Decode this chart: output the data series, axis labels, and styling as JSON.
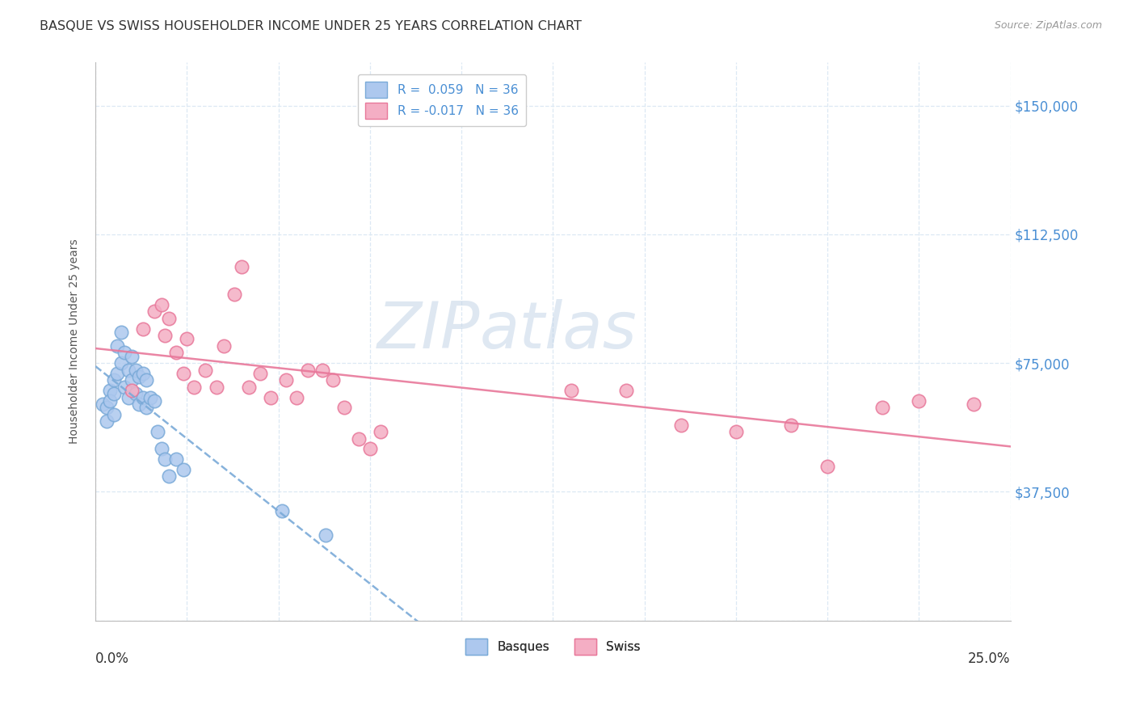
{
  "title": "BASQUE VS SWISS HOUSEHOLDER INCOME UNDER 25 YEARS CORRELATION CHART",
  "source": "Source: ZipAtlas.com",
  "ylabel": "Householder Income Under 25 years",
  "xlim": [
    0.0,
    0.25
  ],
  "ylim": [
    0,
    162500
  ],
  "yticks": [
    0,
    37500,
    75000,
    112500,
    150000
  ],
  "ytick_labels": [
    "",
    "$37,500",
    "$75,000",
    "$112,500",
    "$150,000"
  ],
  "legend_label1": "R =  0.059   N = 36",
  "legend_label2": "R = -0.017   N = 36",
  "basque_color": "#adc8ee",
  "swiss_color": "#f4aec4",
  "basque_edge_color": "#7aaad8",
  "swiss_edge_color": "#e8789a",
  "basque_trend_color": "#7aaad8",
  "swiss_trend_color": "#e8789a",
  "grid_color": "#dce8f4",
  "tick_color_right": "#4a8fd4",
  "watermark_zip": "ZIP",
  "watermark_atlas": "atlas",
  "background_color": "#ffffff",
  "basque_x": [
    0.002,
    0.003,
    0.003,
    0.004,
    0.004,
    0.005,
    0.005,
    0.005,
    0.006,
    0.006,
    0.007,
    0.007,
    0.008,
    0.008,
    0.009,
    0.009,
    0.01,
    0.01,
    0.011,
    0.011,
    0.012,
    0.012,
    0.013,
    0.013,
    0.014,
    0.014,
    0.015,
    0.016,
    0.017,
    0.018,
    0.019,
    0.02,
    0.022,
    0.024,
    0.051,
    0.063
  ],
  "basque_y": [
    63000,
    62000,
    58000,
    67000,
    64000,
    70000,
    66000,
    60000,
    80000,
    72000,
    84000,
    75000,
    78000,
    68000,
    73000,
    65000,
    77000,
    70000,
    73000,
    66000,
    71000,
    63000,
    72000,
    65000,
    70000,
    62000,
    65000,
    64000,
    55000,
    50000,
    47000,
    42000,
    47000,
    44000,
    32000,
    25000
  ],
  "swiss_x": [
    0.01,
    0.013,
    0.016,
    0.018,
    0.019,
    0.02,
    0.022,
    0.024,
    0.025,
    0.027,
    0.03,
    0.033,
    0.035,
    0.038,
    0.04,
    0.042,
    0.045,
    0.048,
    0.052,
    0.055,
    0.058,
    0.062,
    0.065,
    0.068,
    0.072,
    0.075,
    0.078,
    0.13,
    0.145,
    0.16,
    0.175,
    0.19,
    0.2,
    0.215,
    0.225,
    0.24
  ],
  "swiss_y": [
    67000,
    85000,
    90000,
    92000,
    83000,
    88000,
    78000,
    72000,
    82000,
    68000,
    73000,
    68000,
    80000,
    95000,
    103000,
    68000,
    72000,
    65000,
    70000,
    65000,
    73000,
    73000,
    70000,
    62000,
    53000,
    50000,
    55000,
    67000,
    67000,
    57000,
    55000,
    57000,
    45000,
    62000,
    64000,
    63000
  ]
}
